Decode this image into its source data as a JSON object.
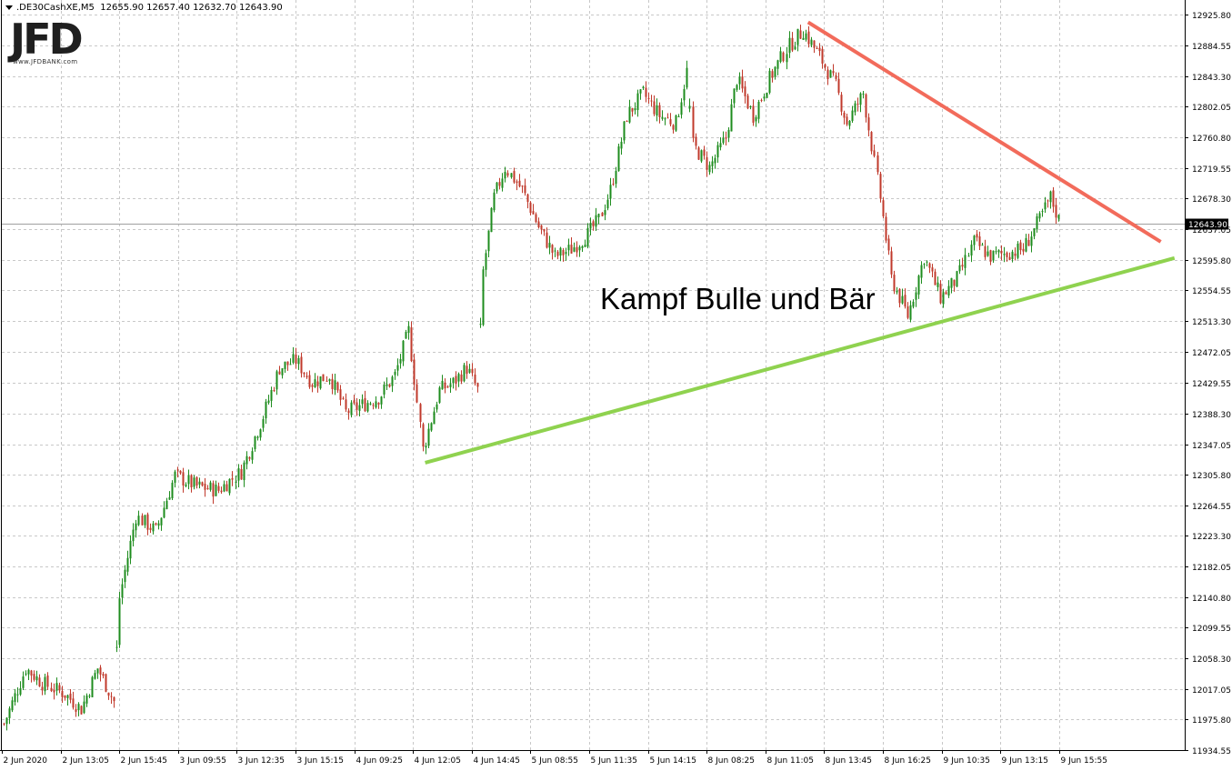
{
  "header": {
    "symbol": ".DE30CashXE,M5",
    "ohlc": "12655.90 12657.40 12632.70 12643.90"
  },
  "logo": {
    "text": "JFD",
    "url": "www.JFDBANK.com"
  },
  "annotation": "Kampf Bulle und Bär",
  "current_price_label": "12643.90",
  "colors": {
    "bull_candle": "#1e8c1e",
    "bear_candle": "#c0392b",
    "resistance_line": "#f26b5b",
    "support_line": "#8fd24f",
    "grid": "#c8c8c8",
    "axis": "#000000"
  },
  "chart_data": {
    "type": "candlestick",
    "ylim": [
      11934.55,
      12946.0
    ],
    "y_ticks": [
      "12925.80",
      "12884.55",
      "12843.30",
      "12802.05",
      "12760.80",
      "12719.55",
      "12678.30",
      "12637.05",
      "12595.80",
      "12554.55",
      "12513.30",
      "12472.05",
      "12429.55",
      "12388.30",
      "12347.05",
      "12305.80",
      "12264.55",
      "12223.30",
      "12182.05",
      "12140.80",
      "12099.55",
      "12058.30",
      "12017.05",
      "11975.80",
      "11934.55"
    ],
    "x_ticks": [
      "2 Jun 2020",
      "2 Jun 13:05",
      "2 Jun 15:45",
      "3 Jun 09:55",
      "3 Jun 12:35",
      "3 Jun 15:15",
      "4 Jun 09:25",
      "4 Jun 12:05",
      "4 Jun 14:45",
      "5 Jun 08:55",
      "5 Jun 11:35",
      "5 Jun 14:15",
      "8 Jun 08:25",
      "8 Jun 11:05",
      "8 Jun 13:45",
      "8 Jun 16:25",
      "9 Jun 10:35",
      "9 Jun 13:15",
      "9 Jun 15:55"
    ],
    "current_price": 12643.9,
    "close_path": [
      {
        "i": 0,
        "p": 11970
      },
      {
        "i": 8,
        "p": 12045
      },
      {
        "i": 14,
        "p": 12025
      },
      {
        "i": 22,
        "p": 12010
      },
      {
        "i": 28,
        "p": 11990
      },
      {
        "i": 34,
        "p": 12045
      },
      {
        "i": 40,
        "p": 12000
      },
      {
        "i": 42,
        "p": 12140
      },
      {
        "i": 48,
        "p": 12250
      },
      {
        "i": 55,
        "p": 12230
      },
      {
        "i": 62,
        "p": 12305
      },
      {
        "i": 70,
        "p": 12290
      },
      {
        "i": 78,
        "p": 12285
      },
      {
        "i": 86,
        "p": 12310
      },
      {
        "i": 94,
        "p": 12385
      },
      {
        "i": 100,
        "p": 12450
      },
      {
        "i": 106,
        "p": 12460
      },
      {
        "i": 112,
        "p": 12430
      },
      {
        "i": 118,
        "p": 12440
      },
      {
        "i": 124,
        "p": 12390
      },
      {
        "i": 130,
        "p": 12400
      },
      {
        "i": 136,
        "p": 12410
      },
      {
        "i": 142,
        "p": 12440
      },
      {
        "i": 147,
        "p": 12500
      },
      {
        "i": 152,
        "p": 12340
      },
      {
        "i": 158,
        "p": 12420
      },
      {
        "i": 163,
        "p": 12430
      },
      {
        "i": 168,
        "p": 12450
      },
      {
        "i": 172,
        "p": 12420
      },
      {
        "i": 174,
        "p": 12580
      },
      {
        "i": 178,
        "p": 12680
      },
      {
        "i": 182,
        "p": 12720
      },
      {
        "i": 188,
        "p": 12690
      },
      {
        "i": 194,
        "p": 12640
      },
      {
        "i": 200,
        "p": 12600
      },
      {
        "i": 206,
        "p": 12610
      },
      {
        "i": 212,
        "p": 12630
      },
      {
        "i": 216,
        "p": 12650
      },
      {
        "i": 220,
        "p": 12690
      },
      {
        "i": 226,
        "p": 12790
      },
      {
        "i": 232,
        "p": 12820
      },
      {
        "i": 238,
        "p": 12790
      },
      {
        "i": 244,
        "p": 12780
      },
      {
        "i": 248,
        "p": 12850
      },
      {
        "i": 250,
        "p": 12750
      },
      {
        "i": 256,
        "p": 12720
      },
      {
        "i": 262,
        "p": 12760
      },
      {
        "i": 266,
        "p": 12840
      },
      {
        "i": 272,
        "p": 12790
      },
      {
        "i": 278,
        "p": 12840
      },
      {
        "i": 284,
        "p": 12880
      },
      {
        "i": 290,
        "p": 12905
      },
      {
        "i": 296,
        "p": 12870
      },
      {
        "i": 302,
        "p": 12830
      },
      {
        "i": 306,
        "p": 12780
      },
      {
        "i": 312,
        "p": 12820
      },
      {
        "i": 318,
        "p": 12680
      },
      {
        "i": 322,
        "p": 12570
      },
      {
        "i": 328,
        "p": 12520
      },
      {
        "i": 334,
        "p": 12600
      },
      {
        "i": 340,
        "p": 12545
      },
      {
        "i": 346,
        "p": 12570
      },
      {
        "i": 352,
        "p": 12620
      },
      {
        "i": 358,
        "p": 12600
      },
      {
        "i": 364,
        "p": 12605
      },
      {
        "i": 370,
        "p": 12610
      },
      {
        "i": 376,
        "p": 12650
      },
      {
        "i": 380,
        "p": 12680
      },
      {
        "i": 384,
        "p": 12640
      }
    ],
    "trendlines": [
      {
        "name": "resistance",
        "from": {
          "i": 292,
          "p": 12916
        },
        "to": {
          "i": 420,
          "p": 12620
        }
      },
      {
        "name": "support",
        "from": {
          "i": 153,
          "p": 12322
        },
        "to": {
          "i": 425,
          "p": 12598
        }
      }
    ]
  }
}
